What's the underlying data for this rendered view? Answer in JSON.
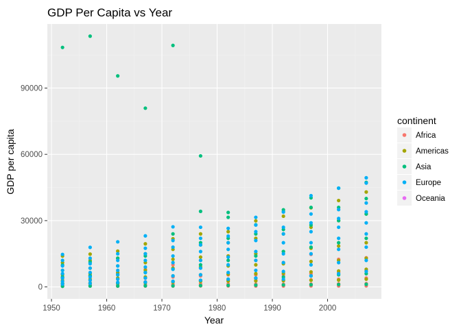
{
  "chart_data": {
    "type": "scatter",
    "title": "GDP Per Capita vs Year",
    "xlabel": "Year",
    "ylabel": "GDP per capita",
    "xlim": [
      1949.25,
      2009.75
    ],
    "ylim": [
      -5400,
      119000
    ],
    "x_ticks": [
      1950,
      1960,
      1970,
      1980,
      1990,
      2000
    ],
    "x_tick_labels": [
      "1950",
      "1960",
      "1970",
      "1980",
      "1990",
      "2000"
    ],
    "y_ticks": [
      0,
      30000,
      60000,
      90000
    ],
    "y_tick_labels": [
      "0",
      "30000",
      "60000",
      "90000"
    ],
    "grid": true,
    "legend": {
      "title": "continent",
      "placement": "right",
      "entries": [
        {
          "name": "Africa",
          "color": "#F8766D"
        },
        {
          "name": "Americas",
          "color": "#A3A500"
        },
        {
          "name": "Asia",
          "color": "#00BF7D"
        },
        {
          "name": "Europe",
          "color": "#00B0F6"
        },
        {
          "name": "Oceania",
          "color": "#E76BF3"
        }
      ]
    },
    "series": [
      {
        "name": "Africa",
        "color": "#F8766D",
        "points": [
          [
            1952,
            300
          ],
          [
            1952,
            800
          ],
          [
            1952,
            1500
          ],
          [
            1952,
            2500
          ],
          [
            1952,
            4000
          ],
          [
            1957,
            400
          ],
          [
            1957,
            900
          ],
          [
            1957,
            1800
          ],
          [
            1957,
            3000
          ],
          [
            1957,
            5200
          ],
          [
            1962,
            350
          ],
          [
            1962,
            1000
          ],
          [
            1962,
            2000
          ],
          [
            1962,
            3500
          ],
          [
            1962,
            6200
          ],
          [
            1967,
            400
          ],
          [
            1967,
            1100
          ],
          [
            1967,
            2300
          ],
          [
            1967,
            4000
          ],
          [
            1967,
            8000
          ],
          [
            1972,
            400
          ],
          [
            1972,
            1200
          ],
          [
            1972,
            2500
          ],
          [
            1972,
            4500
          ],
          [
            1972,
            10000
          ],
          [
            1977,
            450
          ],
          [
            1977,
            1300
          ],
          [
            1977,
            2800
          ],
          [
            1977,
            5000
          ],
          [
            1977,
            12000
          ],
          [
            1982,
            450
          ],
          [
            1982,
            1300
          ],
          [
            1982,
            3000
          ],
          [
            1982,
            5500
          ],
          [
            1982,
            14000
          ],
          [
            1987,
            400
          ],
          [
            1987,
            1200
          ],
          [
            1987,
            3000
          ],
          [
            1987,
            5500
          ],
          [
            1987,
            12000
          ],
          [
            1992,
            400
          ],
          [
            1992,
            1200
          ],
          [
            1992,
            2900
          ],
          [
            1992,
            5500
          ],
          [
            1992,
            11000
          ],
          [
            1997,
            450
          ],
          [
            1997,
            1300
          ],
          [
            1997,
            3200
          ],
          [
            1997,
            6000
          ],
          [
            1997,
            14700
          ],
          [
            2002,
            450
          ],
          [
            2002,
            1400
          ],
          [
            2002,
            3500
          ],
          [
            2002,
            6500
          ],
          [
            2002,
            12500
          ],
          [
            2007,
            500
          ],
          [
            2007,
            1500
          ],
          [
            2007,
            4000
          ],
          [
            2007,
            7500
          ],
          [
            2007,
            13200
          ]
        ]
      },
      {
        "name": "Americas",
        "color": "#A3A500",
        "points": [
          [
            1952,
            1500
          ],
          [
            1952,
            3000
          ],
          [
            1952,
            5500
          ],
          [
            1952,
            7500
          ],
          [
            1952,
            11000
          ],
          [
            1952,
            13990
          ],
          [
            1957,
            1700
          ],
          [
            1957,
            3500
          ],
          [
            1957,
            6000
          ],
          [
            1957,
            8500
          ],
          [
            1957,
            12000
          ],
          [
            1957,
            14850
          ],
          [
            1962,
            1800
          ],
          [
            1962,
            4000
          ],
          [
            1962,
            6500
          ],
          [
            1962,
            9500
          ],
          [
            1962,
            13000
          ],
          [
            1962,
            16200
          ],
          [
            1967,
            2000
          ],
          [
            1967,
            4500
          ],
          [
            1967,
            7500
          ],
          [
            1967,
            11000
          ],
          [
            1967,
            15000
          ],
          [
            1967,
            19500
          ],
          [
            1972,
            2200
          ],
          [
            1972,
            5000
          ],
          [
            1972,
            8500
          ],
          [
            1972,
            12500
          ],
          [
            1972,
            17000
          ],
          [
            1972,
            21800
          ],
          [
            1977,
            2500
          ],
          [
            1977,
            5500
          ],
          [
            1977,
            9000
          ],
          [
            1977,
            13500
          ],
          [
            1977,
            19000
          ],
          [
            1977,
            24000
          ],
          [
            1982,
            2600
          ],
          [
            1982,
            5800
          ],
          [
            1982,
            9500
          ],
          [
            1982,
            14000
          ],
          [
            1982,
            20000
          ],
          [
            1982,
            25000
          ],
          [
            1987,
            2700
          ],
          [
            1987,
            6000
          ],
          [
            1987,
            10000
          ],
          [
            1987,
            15000
          ],
          [
            1987,
            22000
          ],
          [
            1987,
            29900
          ],
          [
            1992,
            2800
          ],
          [
            1992,
            6200
          ],
          [
            1992,
            10500
          ],
          [
            1992,
            16000
          ],
          [
            1992,
            24000
          ],
          [
            1992,
            32000
          ],
          [
            1997,
            3000
          ],
          [
            1997,
            6800
          ],
          [
            1997,
            11500
          ],
          [
            1997,
            17500
          ],
          [
            1997,
            27000
          ],
          [
            1997,
            35800
          ],
          [
            2002,
            3100
          ],
          [
            2002,
            7200
          ],
          [
            2002,
            12000
          ],
          [
            2002,
            18500
          ],
          [
            2002,
            30000
          ],
          [
            2002,
            39100
          ],
          [
            2007,
            3500
          ],
          [
            2007,
            8000
          ],
          [
            2007,
            13000
          ],
          [
            2007,
            20000
          ],
          [
            2007,
            33000
          ],
          [
            2007,
            42950
          ]
        ]
      },
      {
        "name": "Asia",
        "color": "#00BF7D",
        "points": [
          [
            1952,
            108400
          ],
          [
            1952,
            300
          ],
          [
            1952,
            1500
          ],
          [
            1952,
            4500
          ],
          [
            1952,
            9900
          ],
          [
            1957,
            113500
          ],
          [
            1957,
            400
          ],
          [
            1957,
            1600
          ],
          [
            1957,
            5000
          ],
          [
            1957,
            11300
          ],
          [
            1962,
            95500
          ],
          [
            1962,
            400
          ],
          [
            1962,
            1700
          ],
          [
            1962,
            5500
          ],
          [
            1962,
            13000
          ],
          [
            1967,
            80900
          ],
          [
            1967,
            500
          ],
          [
            1967,
            2000
          ],
          [
            1967,
            6500
          ],
          [
            1967,
            14000
          ],
          [
            1972,
            109300
          ],
          [
            1972,
            500
          ],
          [
            1972,
            2500
          ],
          [
            1972,
            8000
          ],
          [
            1972,
            24000
          ],
          [
            1977,
            59300
          ],
          [
            1977,
            34200
          ],
          [
            1977,
            600
          ],
          [
            1977,
            3000
          ],
          [
            1977,
            10000
          ],
          [
            1977,
            20000
          ],
          [
            1982,
            33700
          ],
          [
            1982,
            31500
          ],
          [
            1982,
            700
          ],
          [
            1982,
            3500
          ],
          [
            1982,
            12000
          ],
          [
            1982,
            22000
          ],
          [
            1987,
            28100
          ],
          [
            1987,
            24000
          ],
          [
            1987,
            800
          ],
          [
            1987,
            4000
          ],
          [
            1987,
            14000
          ],
          [
            1992,
            34900
          ],
          [
            1992,
            34000
          ],
          [
            1992,
            900
          ],
          [
            1992,
            4500
          ],
          [
            1992,
            16000
          ],
          [
            1992,
            26000
          ],
          [
            1997,
            40300
          ],
          [
            1997,
            36000
          ],
          [
            1997,
            1000
          ],
          [
            1997,
            5000
          ],
          [
            1997,
            18000
          ],
          [
            1997,
            28000
          ],
          [
            2002,
            44700
          ],
          [
            2002,
            36000
          ],
          [
            2002,
            1100
          ],
          [
            2002,
            5500
          ],
          [
            2002,
            20000
          ],
          [
            2002,
            30000
          ],
          [
            2007,
            47300
          ],
          [
            2007,
            40000
          ],
          [
            2007,
            1200
          ],
          [
            2007,
            6000
          ],
          [
            2007,
            22000
          ],
          [
            2007,
            33000
          ]
        ]
      },
      {
        "name": "Europe",
        "color": "#00B0F6",
        "points": [
          [
            1952,
            14700
          ],
          [
            1952,
            12000
          ],
          [
            1952,
            9500
          ],
          [
            1952,
            7500
          ],
          [
            1952,
            6000
          ],
          [
            1952,
            4000
          ],
          [
            1952,
            2500
          ],
          [
            1952,
            1300
          ],
          [
            1957,
            17900
          ],
          [
            1957,
            13000
          ],
          [
            1957,
            10500
          ],
          [
            1957,
            8500
          ],
          [
            1957,
            6500
          ],
          [
            1957,
            4500
          ],
          [
            1957,
            3000
          ],
          [
            1957,
            1600
          ],
          [
            1962,
            20400
          ],
          [
            1962,
            15000
          ],
          [
            1962,
            12000
          ],
          [
            1962,
            9500
          ],
          [
            1962,
            7500
          ],
          [
            1962,
            5500
          ],
          [
            1962,
            3500
          ],
          [
            1962,
            2000
          ],
          [
            1967,
            23100
          ],
          [
            1967,
            17500
          ],
          [
            1967,
            15000
          ],
          [
            1967,
            12000
          ],
          [
            1967,
            9000
          ],
          [
            1967,
            6500
          ],
          [
            1967,
            4000
          ],
          [
            1967,
            2200
          ],
          [
            1972,
            27200
          ],
          [
            1972,
            21000
          ],
          [
            1972,
            18000
          ],
          [
            1972,
            14000
          ],
          [
            1972,
            11000
          ],
          [
            1972,
            8000
          ],
          [
            1972,
            5000
          ],
          [
            1972,
            2500
          ],
          [
            1977,
            27000
          ],
          [
            1977,
            22000
          ],
          [
            1977,
            19000
          ],
          [
            1977,
            16000
          ],
          [
            1977,
            12000
          ],
          [
            1977,
            8500
          ],
          [
            1977,
            5500
          ],
          [
            1977,
            3000
          ],
          [
            1982,
            26500
          ],
          [
            1982,
            23000
          ],
          [
            1982,
            20000
          ],
          [
            1982,
            17000
          ],
          [
            1982,
            13500
          ],
          [
            1982,
            10000
          ],
          [
            1982,
            6500
          ],
          [
            1982,
            3500
          ],
          [
            1987,
            31500
          ],
          [
            1987,
            28000
          ],
          [
            1987,
            25000
          ],
          [
            1987,
            21000
          ],
          [
            1987,
            16000
          ],
          [
            1987,
            12000
          ],
          [
            1987,
            7500
          ],
          [
            1987,
            4000
          ],
          [
            1992,
            33900
          ],
          [
            1992,
            27000
          ],
          [
            1992,
            24000
          ],
          [
            1992,
            20000
          ],
          [
            1992,
            15000
          ],
          [
            1992,
            11000
          ],
          [
            1992,
            7000
          ],
          [
            1992,
            3500
          ],
          [
            1997,
            41300
          ],
          [
            1997,
            33000
          ],
          [
            1997,
            29000
          ],
          [
            1997,
            25000
          ],
          [
            1997,
            20000
          ],
          [
            1997,
            15000
          ],
          [
            1997,
            10000
          ],
          [
            1997,
            5000
          ],
          [
            2002,
            44700
          ],
          [
            2002,
            35000
          ],
          [
            2002,
            31000
          ],
          [
            2002,
            27000
          ],
          [
            2002,
            22000
          ],
          [
            2002,
            17000
          ],
          [
            2002,
            11000
          ],
          [
            2002,
            6000
          ],
          [
            2007,
            49400
          ],
          [
            2007,
            47000
          ],
          [
            2007,
            38000
          ],
          [
            2007,
            34000
          ],
          [
            2007,
            29000
          ],
          [
            2007,
            24000
          ],
          [
            2007,
            18000
          ],
          [
            2007,
            12000
          ],
          [
            2007,
            7000
          ]
        ]
      },
      {
        "name": "Oceania",
        "color": "#E76BF3",
        "points": []
      }
    ]
  }
}
